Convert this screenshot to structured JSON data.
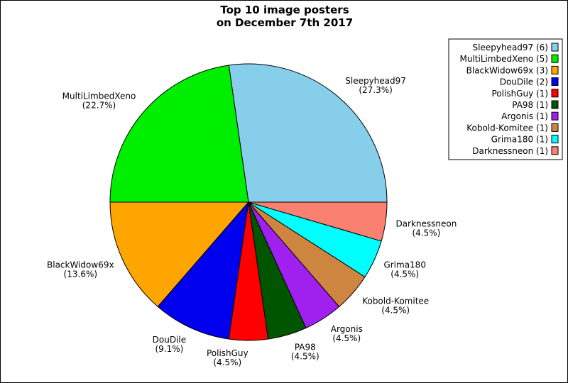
{
  "chart_data": {
    "type": "pie",
    "title_lines": [
      "Top 10 image posters",
      "on December 7th 2017"
    ],
    "start_angle_deg": 0,
    "direction": "counterclockwise",
    "legend_position": "top-right",
    "slices": [
      {
        "name": "Sleepyhead97",
        "count": 6,
        "percent": "27.3%",
        "legend": "Sleepyhead97 (6)",
        "color": "#87ceeb"
      },
      {
        "name": "MultiLimbedXeno",
        "count": 5,
        "percent": "22.7%",
        "legend": "MultiLimbedXeno (5)",
        "color": "#00ee00"
      },
      {
        "name": "BlackWidow69x",
        "count": 3,
        "percent": "13.6%",
        "legend": "BlackWidow69x (3)",
        "color": "#ffa500"
      },
      {
        "name": "DouDile",
        "count": 2,
        "percent": "9.1%",
        "legend": "DouDile (2)",
        "color": "#0000ee"
      },
      {
        "name": "PolishGuy",
        "count": 1,
        "percent": "4.5%",
        "legend": "PolishGuy (1)",
        "color": "#ff0000"
      },
      {
        "name": "PA98",
        "count": 1,
        "percent": "4.5%",
        "legend": "PA98 (1)",
        "color": "#005500"
      },
      {
        "name": "Argonis",
        "count": 1,
        "percent": "4.5%",
        "legend": "Argonis (1)",
        "color": "#a020f0"
      },
      {
        "name": "Kobold-Komitee",
        "count": 1,
        "percent": "4.5%",
        "legend": "Kobold-Komitee (1)",
        "color": "#cd853f"
      },
      {
        "name": "Grima180",
        "count": 1,
        "percent": "4.5%",
        "legend": "Grima180 (1)",
        "color": "#00ffff"
      },
      {
        "name": "Darknessneon",
        "count": 1,
        "percent": "4.5%",
        "legend": "Darknessneon (1)",
        "color": "#fa8072"
      }
    ]
  }
}
